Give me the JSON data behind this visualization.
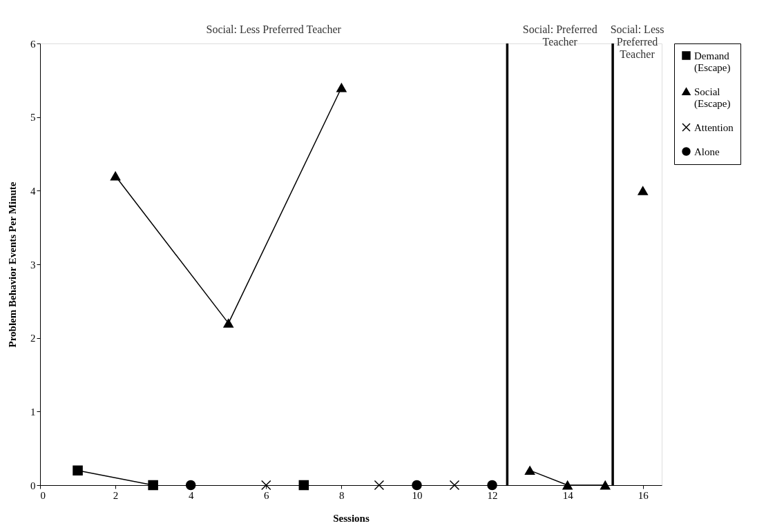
{
  "chart_data": {
    "type": "scatter",
    "xlabel": "Sessions",
    "ylabel": "Problem Behavior Events Per Minute",
    "xlim": [
      0,
      16.5
    ],
    "ylim": [
      0,
      6
    ],
    "xticks": [
      0,
      2,
      4,
      6,
      8,
      10,
      12,
      14,
      16
    ],
    "yticks": [
      0,
      1,
      2,
      3,
      4,
      5,
      6
    ],
    "grid": false,
    "legend": "right",
    "annotations": [
      "Social: Less Preferred Teacher",
      "Social: Preferred Teacher",
      "Social: Less Preferred Teacher"
    ],
    "ref_lines": [
      {
        "axis": "x",
        "value": 12.4,
        "color": "#000000"
      },
      {
        "axis": "x",
        "value": 15.2,
        "color": "#000000"
      }
    ],
    "series": [
      {
        "name": "Demand (Escape)",
        "marker": "square",
        "color": "#000000",
        "x": [
          1,
          3,
          7
        ],
        "values": [
          0.2,
          0,
          0
        ]
      },
      {
        "name": "Social (Escape)",
        "marker": "triangle",
        "color": "#000000",
        "x": [
          2,
          5,
          8,
          13,
          14,
          15,
          16
        ],
        "values": [
          4.2,
          2.2,
          5.4,
          0.2,
          0,
          0,
          4.0
        ]
      },
      {
        "name": "Attention",
        "marker": "cross",
        "color": "#000000",
        "x": [
          6,
          9,
          11
        ],
        "values": [
          0,
          0,
          0
        ]
      },
      {
        "name": "Alone",
        "marker": "circle",
        "color": "#000000",
        "x": [
          4,
          10,
          12
        ],
        "values": [
          0,
          0,
          0
        ]
      },
      {
        "type": "line",
        "color": "#000000",
        "x": [
          1,
          3
        ],
        "values": [
          0.2,
          0
        ]
      },
      {
        "type": "line",
        "color": "#000000",
        "x": [
          2,
          5,
          8
        ],
        "values": [
          4.2,
          2.2,
          5.4
        ]
      },
      {
        "type": "line",
        "color": "#000000",
        "x": [
          13,
          14,
          15
        ],
        "values": [
          0.2,
          0,
          0
        ]
      }
    ]
  }
}
